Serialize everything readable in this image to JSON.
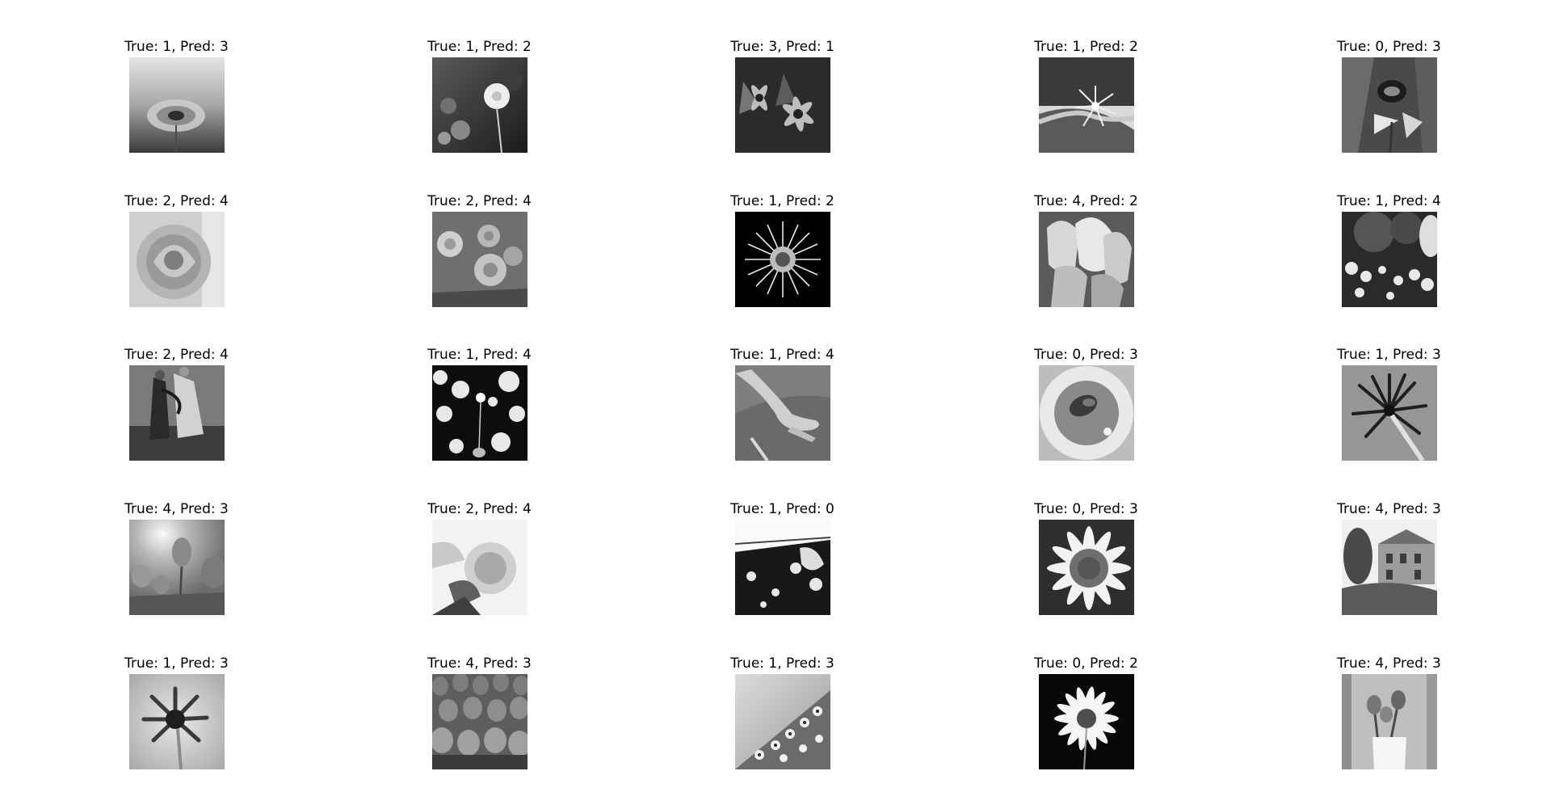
{
  "figure": {
    "cells": [
      {
        "title": "True: 1, Pred: 3",
        "image": "dandelion-seedhead-photo"
      },
      {
        "title": "True: 1, Pred: 2",
        "image": "dandelion-in-field-photo"
      },
      {
        "title": "True: 3, Pred: 1",
        "image": "coneflowers-photo"
      },
      {
        "title": "True: 1, Pred: 2",
        "image": "dandelion-by-path-photo"
      },
      {
        "title": "True: 0, Pred: 3",
        "image": "bee-on-flower-photo"
      },
      {
        "title": "True: 2, Pred: 4",
        "image": "rose-closeup-photo"
      },
      {
        "title": "True: 2, Pred: 4",
        "image": "rose-bush-photo"
      },
      {
        "title": "True: 1, Pred: 2",
        "image": "dandelion-seedhead-dark-photo"
      },
      {
        "title": "True: 4, Pred: 2",
        "image": "tulip-cluster-photo"
      },
      {
        "title": "True: 1, Pred: 4",
        "image": "dandelion-meadow-photo"
      },
      {
        "title": "True: 2, Pred: 4",
        "image": "people-with-flowers-photo"
      },
      {
        "title": "True: 1, Pred: 4",
        "image": "dandelion-bokeh-photo"
      },
      {
        "title": "True: 1, Pred: 4",
        "image": "hand-holding-photo"
      },
      {
        "title": "True: 0, Pred: 3",
        "image": "bee-on-daisy-photo"
      },
      {
        "title": "True: 1, Pred: 3",
        "image": "dandelion-closeup-photo"
      },
      {
        "title": "True: 4, Pred: 3",
        "image": "tulips-sunlight-photo"
      },
      {
        "title": "True: 2, Pred: 4",
        "image": "rose-bright-photo"
      },
      {
        "title": "True: 1, Pred: 0",
        "image": "flowers-fence-photo"
      },
      {
        "title": "True: 0, Pred: 3",
        "image": "daisy-closeup-photo"
      },
      {
        "title": "True: 4, Pred: 3",
        "image": "building-garden-photo"
      },
      {
        "title": "True: 1, Pred: 3",
        "image": "dandelion-flower-photo"
      },
      {
        "title": "True: 4, Pred: 3",
        "image": "tulip-field-photo"
      },
      {
        "title": "True: 1, Pred: 3",
        "image": "flowers-slope-photo"
      },
      {
        "title": "True: 0, Pred: 2",
        "image": "daisy-dark-photo"
      },
      {
        "title": "True: 4, Pred: 3",
        "image": "tulips-in-vase-photo"
      }
    ]
  }
}
